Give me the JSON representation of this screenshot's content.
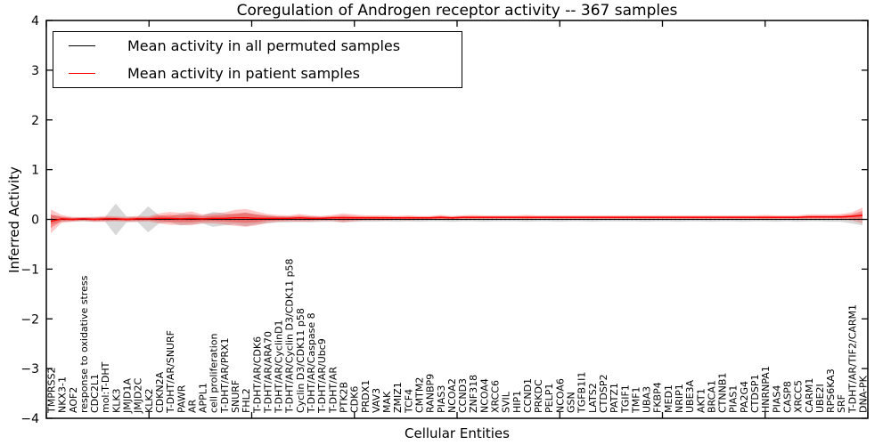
{
  "title": "Coregulation of Androgen receptor activity -- 367 samples",
  "axes": {
    "x_label": "Cellular Entities",
    "y_label": "Inferred Activity",
    "y_tick_labels": [
      "4",
      "3",
      "2",
      "1",
      "0",
      "−1",
      "−2",
      "−3",
      "−4"
    ]
  },
  "legend": {
    "entries": [
      {
        "label": "Mean activity in all permuted samples",
        "color": "#000000"
      },
      {
        "label": "Mean activity in patient samples",
        "color": "#ff0000"
      }
    ]
  },
  "colors": {
    "frame": "#000000",
    "zero_line": "#000000",
    "permuted_line": "#000000",
    "patient_line": "#ff0000",
    "permuted_band": "#999999",
    "patient_band": "#ff0000"
  },
  "chart_data": {
    "type": "line",
    "title": "Coregulation of Androgen receptor activity -- 367 samples",
    "xlabel": "Cellular Entities",
    "ylabel": "Inferred Activity",
    "ylim": [
      -4,
      4
    ],
    "grid": false,
    "legend_position": "upper left",
    "zero_line": {
      "value": 0,
      "style": "dotted"
    },
    "categories": [
      "TMPRSS2",
      "NKX3-1",
      "AOF2",
      "response to oxidative stress",
      "CDC2L1",
      "mol:T-DHT",
      "KLK3",
      "JMJD1A",
      "JMJD2C",
      "KLK2",
      "CDKN2A",
      "T-DHT/AR/SNURF",
      "PAWR",
      "AR",
      "APPL1",
      "cell proliferation",
      "T-DHT/AR/PRX1",
      "SNURF",
      "FHL2",
      "T-DHT/AR/CDK6",
      "T-DHT/AR/ARA70",
      "T-DHT/AR/CyclinD1",
      "T-DHT/AR/Cyclin D3/CDK11 p58",
      "Cyclin D3/CDK11 p58",
      "T-DHT/AR/Caspase 8",
      "T-DHT/AR/Ubc9",
      "T-DHT/AR",
      "PTK2B",
      "CDK6",
      "PRDX1",
      "VAV3",
      "MAK",
      "ZMIZ1",
      "TCF4",
      "CMTM2",
      "RANBP9",
      "PIAS3",
      "NCOA2",
      "CCND3",
      "ZNF318",
      "NCOA4",
      "XRCC6",
      "SVIL",
      "HIP1",
      "CCND1",
      "PRKDC",
      "PELP1",
      "NCOA6",
      "GSN",
      "TGFB1I1",
      "LATS2",
      "CTDSP2",
      "PATZ1",
      "TGIF1",
      "TMF1",
      "UBA3",
      "FKBP4",
      "MED1",
      "NRIP1",
      "UBE3A",
      "AKT1",
      "BRCA1",
      "CTNNB1",
      "PIAS1",
      "PA2G4",
      "CTDSP1",
      "HNRNPA1",
      "PIAS4",
      "CASP8",
      "XRCC5",
      "CARM1",
      "UBE2I",
      "RPS6KA3",
      "SRF",
      "T-DHT/AR/TIF2/CARM1",
      "DNA-PK"
    ],
    "series": [
      {
        "name": "Mean activity in all permuted samples",
        "color": "#000000",
        "values": [
          0,
          0,
          0,
          0,
          0,
          0,
          0,
          0,
          0,
          0,
          0,
          0,
          0,
          0,
          0,
          0,
          0,
          0,
          0,
          0,
          0,
          0,
          0,
          0,
          0,
          0,
          0,
          0,
          0,
          0,
          0,
          0,
          0,
          0,
          0,
          0,
          0,
          0,
          0,
          0,
          0,
          0,
          0,
          0,
          0,
          0,
          0,
          0,
          0,
          0,
          0,
          0,
          0,
          0,
          0,
          0,
          0,
          0,
          0,
          0,
          0,
          0,
          0,
          0,
          0,
          0,
          0,
          0,
          0,
          0,
          0,
          0,
          0,
          0,
          0,
          0
        ],
        "band_halfwidth": [
          0.1,
          0.05,
          0.04,
          0.04,
          0.05,
          0.04,
          0.32,
          0.06,
          0.05,
          0.26,
          0.08,
          0.06,
          0.12,
          0.1,
          0.08,
          0.15,
          0.12,
          0.1,
          0.14,
          0.1,
          0.08,
          0.06,
          0.06,
          0.05,
          0.06,
          0.05,
          0.05,
          0.06,
          0.05,
          0.05,
          0.05,
          0.04,
          0.05,
          0.04,
          0.05,
          0.04,
          0.04,
          0.05,
          0.04,
          0.04,
          0.05,
          0.04,
          0.04,
          0.04,
          0.05,
          0.04,
          0.04,
          0.05,
          0.04,
          0.04,
          0.05,
          0.04,
          0.04,
          0.04,
          0.04,
          0.05,
          0.04,
          0.04,
          0.05,
          0.04,
          0.04,
          0.05,
          0.04,
          0.04,
          0.05,
          0.04,
          0.04,
          0.05,
          0.04,
          0.05,
          0.04,
          0.04,
          0.05,
          0.05,
          0.08,
          0.12
        ]
      },
      {
        "name": "Mean activity in patient samples",
        "color": "#ff0000",
        "values": [
          -0.04,
          0.01,
          0,
          0.01,
          0,
          0.01,
          0.01,
          0,
          0.01,
          0.01,
          0.02,
          0.02,
          0.01,
          0.02,
          0.01,
          0.02,
          0.02,
          0.03,
          0.03,
          0.02,
          0.02,
          0.02,
          0.02,
          0.03,
          0.02,
          0.02,
          0.03,
          0.03,
          0.03,
          0.03,
          0.03,
          0.03,
          0.03,
          0.03,
          0.03,
          0.03,
          0.04,
          0.03,
          0.04,
          0.04,
          0.04,
          0.04,
          0.04,
          0.04,
          0.04,
          0.04,
          0.04,
          0.04,
          0.04,
          0.04,
          0.04,
          0.04,
          0.04,
          0.04,
          0.04,
          0.04,
          0.04,
          0.04,
          0.04,
          0.04,
          0.04,
          0.04,
          0.04,
          0.04,
          0.04,
          0.04,
          0.04,
          0.04,
          0.04,
          0.04,
          0.05,
          0.05,
          0.05,
          0.05,
          0.06,
          0.08
        ],
        "band_halfwidth": [
          0.24,
          0.08,
          0.05,
          0.04,
          0.05,
          0.06,
          0.05,
          0.05,
          0.06,
          0.05,
          0.1,
          0.13,
          0.12,
          0.14,
          0.09,
          0.1,
          0.12,
          0.16,
          0.18,
          0.14,
          0.09,
          0.07,
          0.06,
          0.08,
          0.06,
          0.05,
          0.06,
          0.09,
          0.07,
          0.05,
          0.05,
          0.05,
          0.04,
          0.05,
          0.04,
          0.04,
          0.05,
          0.04,
          0.04,
          0.05,
          0.04,
          0.04,
          0.04,
          0.04,
          0.05,
          0.04,
          0.04,
          0.04,
          0.04,
          0.04,
          0.04,
          0.04,
          0.04,
          0.04,
          0.04,
          0.04,
          0.04,
          0.04,
          0.04,
          0.04,
          0.04,
          0.04,
          0.04,
          0.04,
          0.04,
          0.04,
          0.05,
          0.04,
          0.04,
          0.04,
          0.05,
          0.05,
          0.05,
          0.06,
          0.08,
          0.16
        ]
      }
    ]
  }
}
